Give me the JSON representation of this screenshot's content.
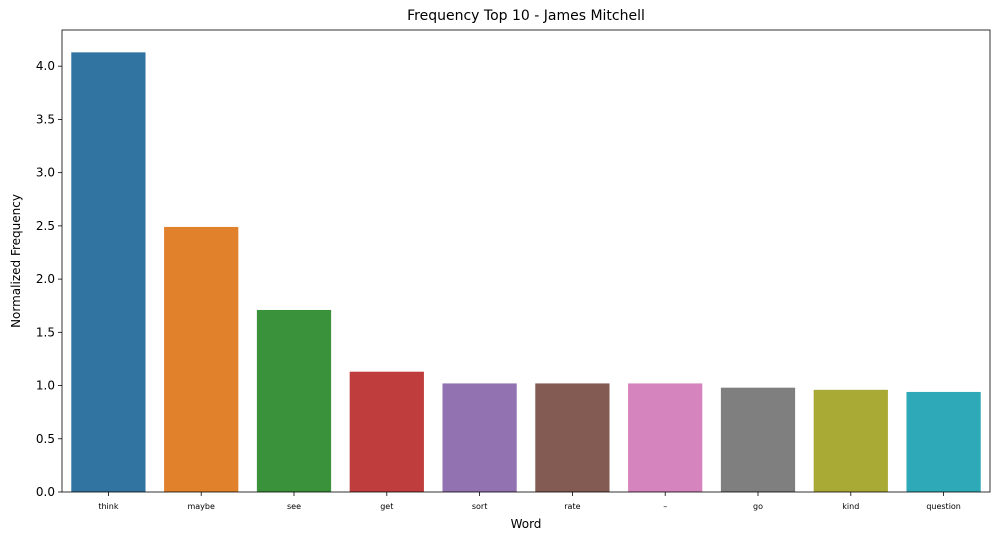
{
  "chart_data": {
    "type": "bar",
    "title": "Frequency Top 10 - James Mitchell",
    "xlabel": "Word",
    "ylabel": "Normalized Frequency",
    "categories": [
      "think",
      "maybe",
      "see",
      "get",
      "sort",
      "rate",
      "–",
      "go",
      "kind",
      "question"
    ],
    "values": [
      4.13,
      2.49,
      1.71,
      1.13,
      1.02,
      1.02,
      1.02,
      0.98,
      0.96,
      0.94
    ],
    "colors": [
      "#3274a1",
      "#e1812c",
      "#3a923a",
      "#c03d3e",
      "#9372b2",
      "#845b53",
      "#d684bd",
      "#7f7f7f",
      "#a9aa35",
      "#2ea9b8"
    ],
    "ylim": [
      0,
      4.34
    ],
    "yticks": [
      0.0,
      0.5,
      1.0,
      1.5,
      2.0,
      2.5,
      3.0,
      3.5,
      4.0
    ],
    "ytick_labels": [
      "0.0",
      "0.5",
      "1.0",
      "1.5",
      "2.0",
      "2.5",
      "3.0",
      "3.5",
      "4.0"
    ],
    "grid": false
  }
}
